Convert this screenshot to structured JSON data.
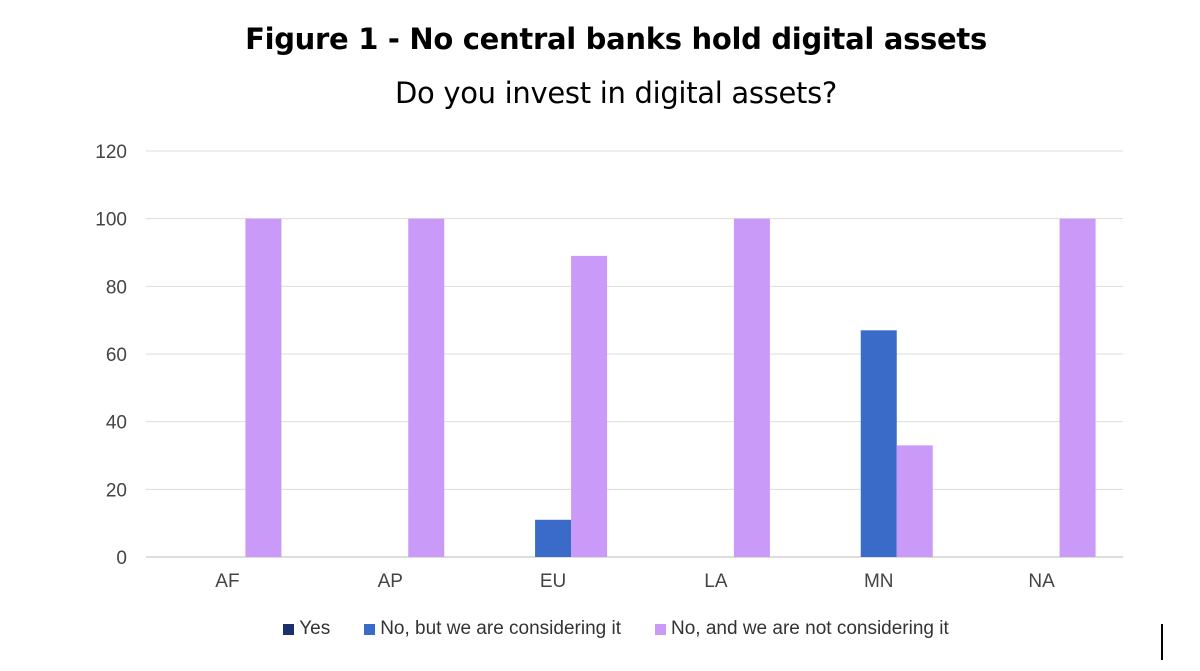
{
  "chart_data": {
    "type": "bar",
    "title": "Figure 1 - No central banks hold digital assets",
    "subtitle": "Do you invest in digital assets?",
    "categories": [
      "AF",
      "AP",
      "EU",
      "LA",
      "MN",
      "NA"
    ],
    "series": [
      {
        "name": "Yes",
        "color": "#1a2f6b",
        "values": [
          0,
          0,
          0,
          0,
          0,
          0
        ]
      },
      {
        "name": "No, but we are considering it",
        "color": "#3a6bc9",
        "values": [
          0,
          0,
          11,
          0,
          67,
          0
        ]
      },
      {
        "name": "No, and we are not considering it",
        "color": "#c99af7",
        "values": [
          100,
          100,
          89,
          100,
          33,
          100
        ]
      }
    ],
    "ylim": [
      0,
      120
    ],
    "yticks": [
      0,
      20,
      40,
      60,
      80,
      100,
      120
    ],
    "grid": true,
    "legend": "bottom"
  }
}
